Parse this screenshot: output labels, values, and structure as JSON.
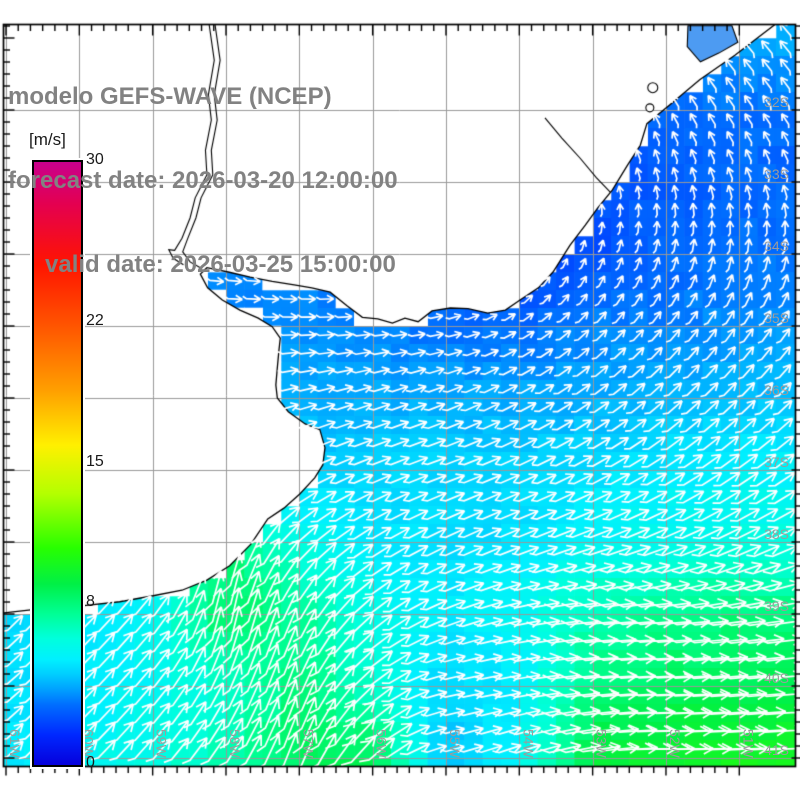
{
  "title": {
    "line1": "modelo GEFS-WAVE (NCEP)",
    "line2": "forecast date: 2026-03-20 12:00:00",
    "line3": "valid date: 2026-03-25 15:00:00"
  },
  "colorbar": {
    "unit": "[m/s]",
    "min": 0,
    "max": 30,
    "ticks": [
      {
        "label": "30",
        "value": 30
      },
      {
        "label": "22",
        "value": 22
      },
      {
        "label": "15",
        "value": 15
      },
      {
        "label": "8",
        "value": 8
      },
      {
        "label": "0",
        "value": 0
      }
    ],
    "value_anchor_points": [
      0,
      8,
      15,
      22,
      30
    ],
    "gradient_stops": [
      [
        0,
        "#0600DC"
      ],
      [
        5,
        "#0028FF"
      ],
      [
        10,
        "#006EFF"
      ],
      [
        12.5,
        "#00A0FF"
      ],
      [
        15,
        "#00CDFF"
      ],
      [
        17.5,
        "#00F0FF"
      ],
      [
        21,
        "#00FFDC"
      ],
      [
        25,
        "#00FF96"
      ],
      [
        30,
        "#00F046"
      ],
      [
        36,
        "#28FF00"
      ],
      [
        45,
        "#B4FF00"
      ],
      [
        53,
        "#FFF000"
      ],
      [
        62,
        "#FFA000"
      ],
      [
        72,
        "#FF5A00"
      ],
      [
        83,
        "#FF1400"
      ],
      [
        93,
        "#E40050"
      ],
      [
        100,
        "#C8008C"
      ]
    ]
  },
  "axes": {
    "lat_labels": [
      {
        "label": "32S",
        "value": 32
      },
      {
        "label": "33S",
        "value": 33
      },
      {
        "label": "34S",
        "value": 34
      },
      {
        "label": "35S",
        "value": 35
      },
      {
        "label": "36S",
        "value": 36
      },
      {
        "label": "37S",
        "value": 37
      },
      {
        "label": "38S",
        "value": 38
      },
      {
        "label": "39S",
        "value": 39
      },
      {
        "label": "40S",
        "value": 40
      },
      {
        "label": "41S",
        "value": 41
      }
    ],
    "lon_labels": [
      {
        "label": "61W",
        "value": 61
      },
      {
        "label": "60W",
        "value": 60
      },
      {
        "label": "59W",
        "value": 59
      },
      {
        "label": "58W",
        "value": 58
      },
      {
        "label": "57W",
        "value": 57
      },
      {
        "label": "56W",
        "value": 56
      },
      {
        "label": "55W",
        "value": 55
      },
      {
        "label": "54W",
        "value": 54
      },
      {
        "label": "53W",
        "value": 53
      },
      {
        "label": "52W",
        "value": 52
      },
      {
        "label": "51W",
        "value": 51
      }
    ]
  },
  "field": {
    "type": "heatmap_with_vectors",
    "units": "m/s",
    "lat_values": [
      31,
      32,
      33,
      34,
      35,
      36,
      37,
      38,
      39,
      40,
      41
    ],
    "lon_values": [
      61,
      60,
      59,
      58,
      57,
      56,
      55,
      54,
      53,
      52,
      51
    ],
    "speed_ms": [
      [
        3,
        3,
        3,
        3,
        3,
        3,
        3,
        3,
        3.2,
        3.5,
        4.2
      ],
      [
        3,
        3,
        3,
        3,
        3,
        3,
        2.8,
        2.5,
        2.8,
        3.2,
        3.2
      ],
      [
        3,
        3,
        3,
        3,
        3,
        2.6,
        2.1,
        2,
        2.5,
        2.8,
        3
      ],
      [
        3.4,
        3.4,
        3.4,
        3.3,
        3.2,
        2.8,
        2.2,
        2,
        2.5,
        3,
        3.2
      ],
      [
        3.6,
        3.6,
        3.6,
        3.8,
        3.8,
        3.5,
        3.2,
        3.2,
        3.5,
        3.5,
        3.8
      ],
      [
        4,
        4,
        4,
        4.2,
        4.2,
        4.2,
        4.2,
        4.2,
        4.2,
        4.5,
        4.5
      ],
      [
        4.5,
        4.5,
        4.8,
        5,
        5,
        5,
        5,
        5,
        5.2,
        5.5,
        5.8
      ],
      [
        5,
        5.2,
        5.5,
        8.5,
        6.5,
        5.5,
        5.2,
        5.2,
        6,
        6.2,
        6.5
      ],
      [
        5.2,
        5.5,
        6,
        9,
        8,
        6.5,
        5.5,
        6,
        7.5,
        8,
        8.5
      ],
      [
        5.2,
        5.5,
        6,
        6.8,
        8.5,
        7,
        5,
        5.5,
        8.5,
        9,
        9.2
      ],
      [
        5.5,
        6,
        6.5,
        7.5,
        9,
        9.2,
        4.5,
        6,
        9.5,
        10,
        10.2
      ]
    ],
    "direction_deg_toward": [
      [
        320,
        320,
        320,
        320,
        320,
        320,
        320,
        322,
        325,
        322,
        320
      ],
      [
        330,
        330,
        330,
        330,
        330,
        332,
        335,
        335,
        335,
        330,
        325
      ],
      [
        350,
        350,
        350,
        350,
        352,
        353,
        355,
        350,
        345,
        345,
        340
      ],
      [
        100,
        100,
        100,
        98,
        95,
        75,
        45,
        30,
        20,
        15,
        10
      ],
      [
        92,
        92,
        92,
        90,
        90,
        85,
        80,
        60,
        45,
        40,
        35
      ],
      [
        80,
        80,
        78,
        75,
        75,
        72,
        68,
        62,
        55,
        48,
        45
      ],
      [
        62,
        60,
        58,
        58,
        64,
        68,
        70,
        66,
        62,
        58,
        55
      ],
      [
        48,
        42,
        35,
        15,
        45,
        58,
        64,
        68,
        70,
        68,
        65
      ],
      [
        45,
        45,
        40,
        10,
        25,
        50,
        68,
        78,
        85,
        85,
        82
      ],
      [
        50,
        45,
        40,
        25,
        20,
        50,
        78,
        80,
        85,
        88,
        85
      ],
      [
        45,
        45,
        42,
        35,
        20,
        45,
        75,
        70,
        80,
        90,
        88
      ]
    ]
  },
  "geography": {
    "land_outline_lon_lat": [
      [
        61.08,
        30.81
      ],
      [
        50.51,
        30.81
      ],
      [
        51.06,
        31.24
      ],
      [
        51.54,
        31.58
      ],
      [
        51.95,
        31.93
      ],
      [
        52.26,
        32.19
      ],
      [
        52.35,
        32.49
      ],
      [
        52.52,
        32.76
      ],
      [
        52.73,
        33.11
      ],
      [
        52.93,
        33.36
      ],
      [
        53.1,
        33.6
      ],
      [
        53.31,
        33.88
      ],
      [
        53.54,
        34.25
      ],
      [
        53.74,
        34.47
      ],
      [
        53.99,
        34.64
      ],
      [
        54.19,
        34.78
      ],
      [
        54.43,
        34.82
      ],
      [
        54.7,
        34.76
      ],
      [
        54.94,
        34.75
      ],
      [
        55.19,
        34.79
      ],
      [
        55.38,
        34.94
      ],
      [
        55.56,
        34.89
      ],
      [
        55.73,
        34.96
      ],
      [
        55.93,
        34.9
      ],
      [
        56.14,
        34.88
      ],
      [
        56.35,
        34.72
      ],
      [
        56.58,
        34.53
      ],
      [
        56.83,
        34.47
      ],
      [
        57.07,
        34.43
      ],
      [
        57.37,
        34.38
      ],
      [
        57.67,
        34.32
      ],
      [
        57.97,
        34.25
      ],
      [
        58.26,
        34.19
      ],
      [
        58.35,
        34.28
      ],
      [
        58.25,
        34.47
      ],
      [
        58.05,
        34.64
      ],
      [
        57.81,
        34.78
      ],
      [
        57.56,
        34.89
      ],
      [
        57.37,
        35.01
      ],
      [
        57.26,
        35.17
      ],
      [
        57.28,
        35.36
      ],
      [
        57.3,
        35.58
      ],
      [
        57.32,
        35.82
      ],
      [
        57.3,
        36.0
      ],
      [
        57.15,
        36.19
      ],
      [
        56.92,
        36.36
      ],
      [
        56.72,
        36.44
      ],
      [
        56.65,
        36.69
      ],
      [
        56.68,
        36.93
      ],
      [
        56.79,
        37.11
      ],
      [
        56.99,
        37.33
      ],
      [
        57.21,
        37.53
      ],
      [
        57.43,
        37.68
      ],
      [
        57.66,
        38.03
      ],
      [
        57.95,
        38.33
      ],
      [
        58.26,
        38.53
      ],
      [
        58.6,
        38.67
      ],
      [
        59.01,
        38.75
      ],
      [
        59.45,
        38.83
      ],
      [
        60.0,
        38.89
      ],
      [
        60.54,
        38.93
      ],
      [
        61.08,
        38.99
      ]
    ],
    "lagoon_lon_lat": [
      [
        51.7,
        30.83
      ],
      [
        51.1,
        30.83
      ],
      [
        51.02,
        31.06
      ],
      [
        51.28,
        31.21
      ],
      [
        51.53,
        31.33
      ],
      [
        51.71,
        31.12
      ]
    ],
    "rivers": {
      "east_bank": [
        [
          58.15,
          30.81
        ],
        [
          58.08,
          31.31
        ],
        [
          58.16,
          31.79
        ],
        [
          58.12,
          32.14
        ],
        [
          58.2,
          32.56
        ],
        [
          58.18,
          32.9
        ],
        [
          58.34,
          33.22
        ],
        [
          58.41,
          33.5
        ],
        [
          58.52,
          33.78
        ],
        [
          58.59,
          33.97
        ],
        [
          58.49,
          34.11
        ],
        [
          58.35,
          34.19
        ]
      ],
      "west_bank": [
        [
          58.23,
          30.81
        ],
        [
          58.16,
          31.31
        ],
        [
          58.24,
          31.79
        ],
        [
          58.2,
          32.14
        ],
        [
          58.28,
          32.56
        ],
        [
          58.26,
          32.9
        ],
        [
          58.42,
          33.22
        ],
        [
          58.49,
          33.5
        ],
        [
          58.6,
          33.78
        ],
        [
          58.7,
          33.95
        ],
        [
          58.78,
          33.94
        ],
        [
          58.72,
          34.06
        ],
        [
          58.58,
          34.15
        ]
      ],
      "merin_shore": [
        [
          53.65,
          32.11
        ],
        [
          53.42,
          32.39
        ],
        [
          53.17,
          32.67
        ],
        [
          52.95,
          32.94
        ],
        [
          52.76,
          33.14
        ]
      ]
    },
    "small_lakes": [
      {
        "lon": 52.18,
        "lat": 31.69,
        "r": 5
      },
      {
        "lon": 52.22,
        "lat": 31.97,
        "r": 4
      }
    ]
  },
  "colors": {
    "arrow": "#FFFFFF",
    "gridline": "#999999",
    "coastline": "#000000",
    "land": "#FFFFFF",
    "lagoon_fill": "#4D9BF2",
    "axis_label": "#9C9C9C",
    "title_text": "#828282",
    "frame": "#000000",
    "tick_text": "#1A1A1A"
  }
}
